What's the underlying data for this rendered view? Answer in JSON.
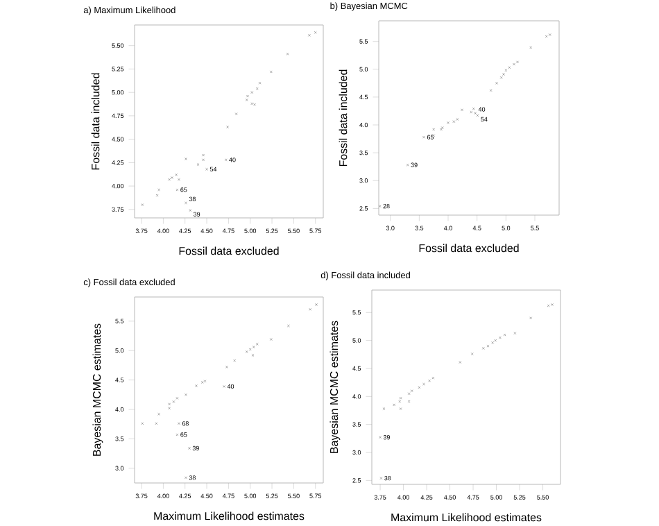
{
  "chart_data": [
    {
      "type": "scatter",
      "title": "a) Maximum Likelihood",
      "xlabel": "Fossil data excluded",
      "ylabel": "Fossil data included",
      "marker": "cross",
      "color": "#808080",
      "xlim": [
        3.67,
        5.84
      ],
      "ylim": [
        3.66,
        5.72
      ],
      "xticks": [
        3.75,
        {
          "value": 4,
          "label": "4.00"
        },
        4.25,
        {
          "value": 4.5,
          "label": "4.50"
        },
        4.75,
        {
          "value": 5,
          "label": "5.00"
        },
        5.25,
        {
          "value": 5.5,
          "label": "5.50"
        },
        5.75
      ],
      "yticks": [
        3.75,
        {
          "value": 4,
          "label": "4.00"
        },
        4.25,
        {
          "value": 4.5,
          "label": "4.50"
        },
        4.75,
        {
          "value": 5,
          "label": "5.00"
        },
        5.25,
        {
          "value": 5.5,
          "label": "5.50"
        }
      ],
      "x": [
        3.76,
        3.93,
        3.95,
        4.07,
        4.1,
        4.15,
        4.18,
        4.16,
        4.26,
        4.26,
        4.31,
        4.4,
        4.46,
        4.46,
        4.5,
        4.72,
        4.74,
        4.84,
        4.96,
        4.97,
        5.02,
        5.02,
        5.05,
        5.08,
        5.11,
        5.24,
        5.43,
        5.68,
        5.75
      ],
      "values": [
        3.8,
        3.9,
        3.96,
        4.07,
        4.09,
        4.12,
        4.07,
        3.96,
        4.29,
        3.82,
        3.74,
        4.23,
        4.33,
        4.28,
        4.18,
        4.28,
        4.63,
        4.77,
        4.92,
        4.96,
        5.0,
        4.88,
        4.87,
        5.04,
        5.1,
        5.22,
        5.41,
        5.61,
        5.64
      ],
      "annotations": [
        {
          "text": "65",
          "x": 4.16,
          "y": 3.96
        },
        {
          "text": "38",
          "x": 4.26,
          "y": 3.82
        },
        {
          "text": "39",
          "x": 4.31,
          "y": 3.74
        },
        {
          "text": "54",
          "x": 4.5,
          "y": 4.18
        },
        {
          "text": "40",
          "x": 4.72,
          "y": 4.28
        }
      ]
    },
    {
      "type": "scatter",
      "title": "b) Bayesian MCMC",
      "xlabel": "Fossil data excluded",
      "ylabel": "Fossil data included",
      "marker": "cross",
      "color": "#808080",
      "xlim": [
        2.8,
        5.92
      ],
      "ylim": [
        2.38,
        5.87
      ],
      "xticks": [
        {
          "value": 3,
          "label": "3.0"
        },
        3.5,
        {
          "value": 4,
          "label": "4.0"
        },
        4.5,
        {
          "value": 5,
          "label": "5.0"
        },
        5.5
      ],
      "yticks": [
        2.5,
        {
          "value": 3,
          "label": "3.0"
        },
        3.5,
        {
          "value": 4,
          "label": "4.0"
        },
        4.5,
        {
          "value": 5,
          "label": "5.0"
        },
        5.5
      ],
      "x": [
        2.82,
        3.3,
        3.58,
        3.75,
        3.75,
        3.88,
        3.9,
        4.0,
        4.1,
        4.16,
        4.24,
        4.4,
        4.44,
        4.47,
        4.51,
        4.74,
        4.84,
        4.92,
        4.96,
        5.0,
        5.06,
        5.14,
        5.2,
        5.43,
        5.7,
        5.76
      ],
      "values": [
        2.54,
        3.28,
        3.78,
        3.81,
        3.92,
        3.92,
        3.95,
        4.04,
        4.06,
        4.1,
        4.27,
        4.23,
        4.29,
        4.21,
        4.17,
        4.62,
        4.75,
        4.85,
        4.91,
        4.98,
        5.03,
        5.09,
        5.13,
        5.39,
        5.59,
        5.62
      ],
      "annotations": [
        {
          "text": "28",
          "x": 2.82,
          "y": 2.54
        },
        {
          "text": "39",
          "x": 3.3,
          "y": 3.28
        },
        {
          "text": "65",
          "x": 3.58,
          "y": 3.78
        },
        {
          "text": "40",
          "x": 4.47,
          "y": 4.21
        },
        {
          "text": "54",
          "x": 4.51,
          "y": 4.17
        }
      ]
    },
    {
      "type": "scatter",
      "title": "c)  Fossil data excluded",
      "xlabel": "Maximum Likelihood estimates",
      "ylabel": "Bayesian MCMC estimates",
      "marker": "cross",
      "color": "#808080",
      "xlim": [
        3.67,
        5.84
      ],
      "ylim": [
        2.75,
        5.91
      ],
      "xticks": [
        3.75,
        {
          "value": 4,
          "label": "4.00"
        },
        4.25,
        {
          "value": 4.5,
          "label": "4.50"
        },
        4.75,
        {
          "value": 5,
          "label": "5.00"
        },
        5.25,
        {
          "value": 5.5,
          "label": "5.50"
        },
        5.75
      ],
      "yticks": [
        {
          "value": 3,
          "label": "3.0"
        },
        3.5,
        {
          "value": 4,
          "label": "4.0"
        },
        4.5,
        {
          "value": 5,
          "label": "5.0"
        },
        5.5
      ],
      "x": [
        3.76,
        3.92,
        3.95,
        4.07,
        4.07,
        4.12,
        4.16,
        4.18,
        4.16,
        4.26,
        4.3,
        4.26,
        4.38,
        4.45,
        4.48,
        4.7,
        4.73,
        4.82,
        4.96,
        5.0,
        5.04,
        5.03,
        5.08,
        5.24,
        5.44,
        5.69,
        5.76
      ],
      "values": [
        3.76,
        3.76,
        3.92,
        4.02,
        4.09,
        4.13,
        4.19,
        3.76,
        3.57,
        4.25,
        3.34,
        2.84,
        4.4,
        4.46,
        4.48,
        4.39,
        4.72,
        4.83,
        4.98,
        5.02,
        5.06,
        4.92,
        5.11,
        5.19,
        5.42,
        5.7,
        5.78
      ],
      "annotations": [
        {
          "text": "68",
          "x": 4.18,
          "y": 3.76
        },
        {
          "text": "65",
          "x": 4.16,
          "y": 3.57
        },
        {
          "text": "39",
          "x": 4.3,
          "y": 3.34
        },
        {
          "text": "38",
          "x": 4.26,
          "y": 2.84
        },
        {
          "text": "40",
          "x": 4.7,
          "y": 4.39
        }
      ]
    },
    {
      "type": "scatter",
      "title": "d)  Fossil data included",
      "xlabel": "Maximum Likelihood estimates",
      "ylabel": "Bayesian MCMC estimates",
      "marker": "cross",
      "color": "#808080",
      "xlim": [
        3.66,
        5.69
      ],
      "ylim": [
        2.43,
        5.9
      ],
      "xticks": [
        3.75,
        {
          "value": 4,
          "label": "4.00"
        },
        4.25,
        {
          "value": 4.5,
          "label": "4.50"
        },
        4.75,
        {
          "value": 5,
          "label": "5.00"
        },
        5.25,
        {
          "value": 5.5,
          "label": "5.50"
        }
      ],
      "yticks": [
        2.5,
        {
          "value": 3,
          "label": "3.0"
        },
        3.5,
        {
          "value": 4,
          "label": "4.0"
        },
        4.5,
        {
          "value": 5,
          "label": "5.0"
        },
        5.5
      ],
      "x": [
        3.76,
        3.75,
        3.79,
        3.9,
        3.96,
        3.97,
        3.97,
        4.06,
        4.06,
        4.09,
        4.17,
        4.22,
        4.28,
        4.32,
        4.61,
        4.74,
        4.86,
        4.91,
        4.96,
        4.99,
        5.04,
        5.09,
        5.2,
        5.37,
        5.56,
        5.6
      ],
      "values": [
        2.54,
        3.27,
        3.78,
        3.85,
        3.91,
        3.78,
        3.97,
        3.91,
        4.05,
        4.1,
        4.16,
        4.22,
        4.28,
        4.33,
        4.61,
        4.76,
        4.86,
        4.9,
        4.96,
        5.0,
        5.05,
        5.1,
        5.13,
        5.4,
        5.62,
        5.64
      ],
      "annotations": [
        {
          "text": "39",
          "x": 3.75,
          "y": 3.27
        },
        {
          "text": "38",
          "x": 3.76,
          "y": 2.54
        }
      ]
    }
  ]
}
